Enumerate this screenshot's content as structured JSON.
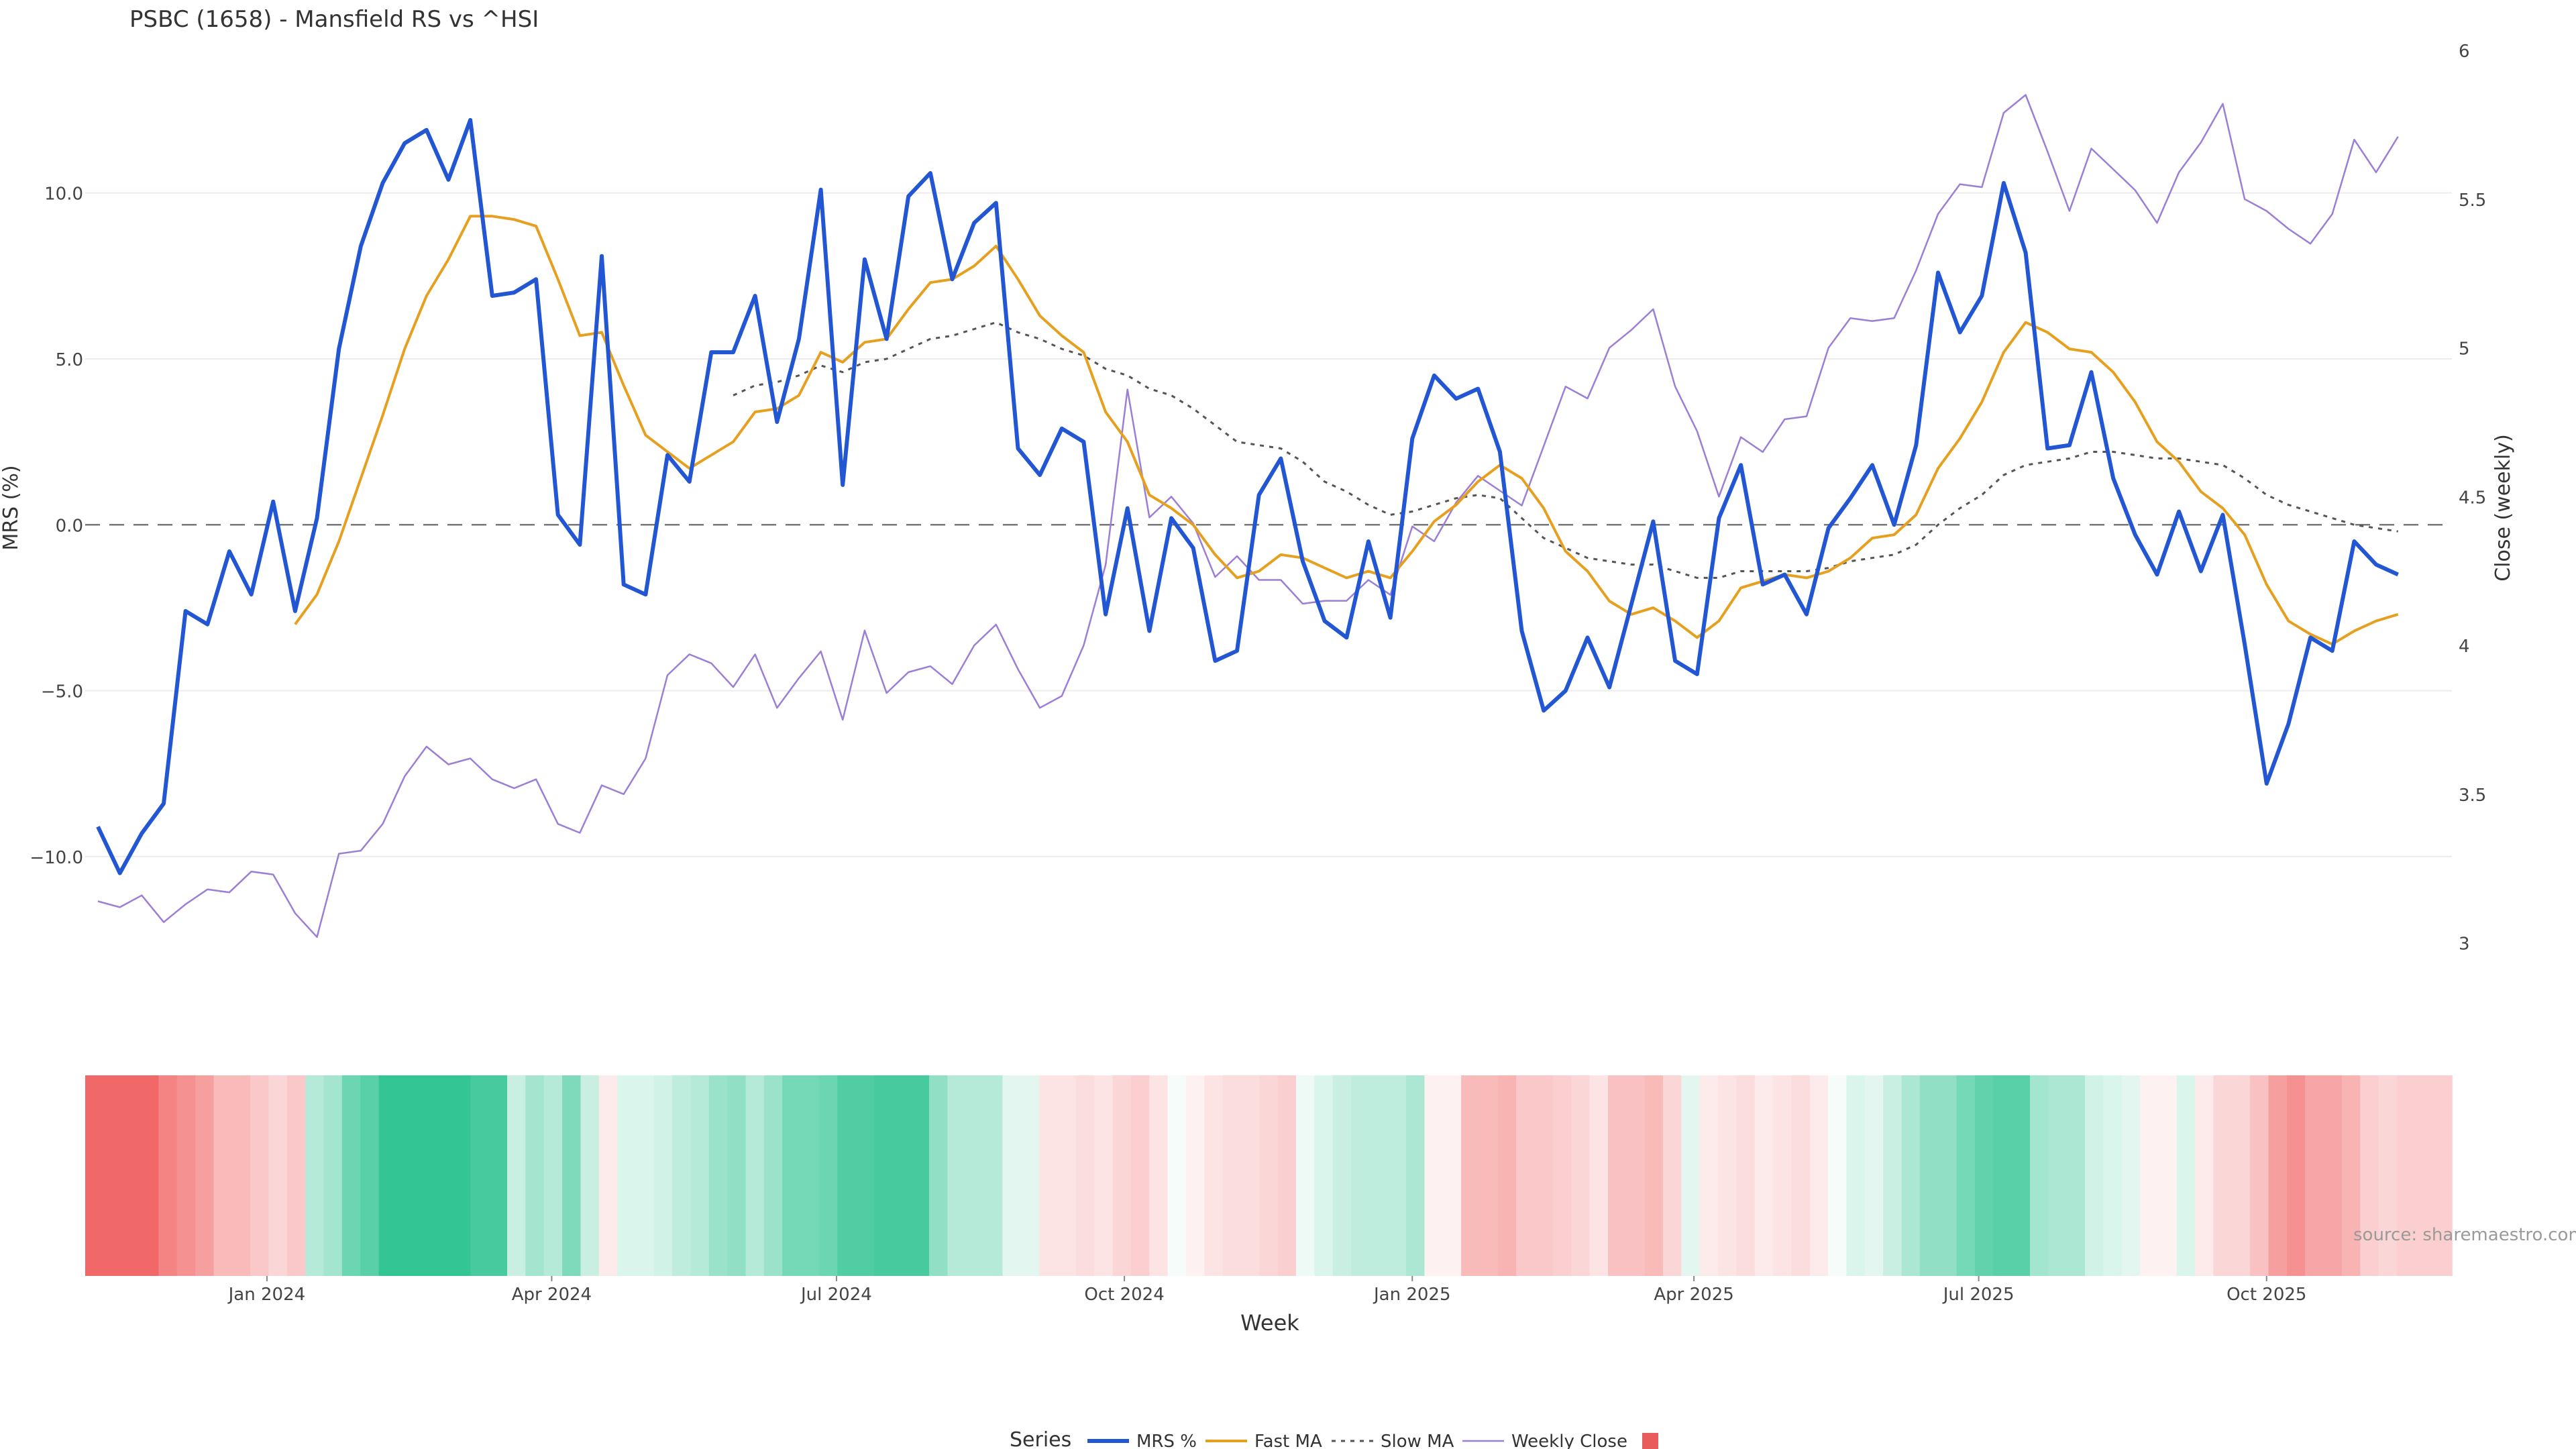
{
  "chart_data": {
    "type": "line",
    "title": "PSBC (1658) - Mansfield RS vs ^HSI",
    "xlabel": "Week",
    "ylabel_left": "MRS (%)",
    "ylabel_right": "Close (weekly)",
    "watermark": "source: sharemaestro.com",
    "legend_title": "Series",
    "legend_position": "bottom-center",
    "x_start": "2023-11-08",
    "week_count": 108,
    "x_ticks": [
      {
        "label": "Jan 2024",
        "date": "2024-01-01"
      },
      {
        "label": "Apr 2024",
        "date": "2024-04-01"
      },
      {
        "label": "Jul 2024",
        "date": "2024-07-01"
      },
      {
        "label": "Oct 2024",
        "date": "2024-10-01"
      },
      {
        "label": "Jan 2025",
        "date": "2025-01-01"
      },
      {
        "label": "Apr 2025",
        "date": "2025-04-01"
      },
      {
        "label": "Jul 2025",
        "date": "2025-07-01"
      },
      {
        "label": "Oct 2025",
        "date": "2025-10-01"
      }
    ],
    "y_left": {
      "ticks": [
        "10.0",
        "5.0",
        "0.0",
        "−5.0",
        "−10.0"
      ],
      "values": [
        10,
        5,
        0,
        -5,
        -10
      ],
      "range": [
        -13.5,
        14.3
      ]
    },
    "y_right": {
      "ticks": [
        "6",
        "5.5",
        "5",
        "4.5",
        "4",
        "3.5",
        "3"
      ],
      "values": [
        6,
        5.5,
        5,
        4.5,
        4,
        3.5,
        3
      ],
      "range": [
        2.9,
        6.0
      ]
    },
    "zero_line": true,
    "colors": {
      "mrs": "#2356d2",
      "fast": "#e6a020",
      "slow": "#555555",
      "close": "#9b7fd6",
      "legend_swatch": "#e85c5c"
    },
    "series": [
      {
        "key": "mrs",
        "name": "MRS %",
        "style": "solid",
        "values": [
          -9.1,
          -10.5,
          -9.3,
          -8.4,
          -2.6,
          -3.0,
          -0.8,
          -2.1,
          0.7,
          -2.6,
          0.2,
          5.3,
          8.4,
          10.3,
          11.5,
          11.9,
          10.4,
          12.2,
          6.9,
          7.0,
          7.4,
          0.3,
          -0.6,
          8.1,
          -1.8,
          -2.1,
          2.1,
          1.3,
          5.2,
          5.2,
          6.9,
          3.1,
          5.6,
          10.1,
          1.2,
          8.0,
          5.6,
          9.9,
          10.6,
          7.4,
          9.1,
          9.7,
          2.3,
          1.5,
          2.9,
          2.5,
          -2.7,
          0.5,
          -3.2,
          0.2,
          -0.7,
          -4.1,
          -3.8,
          0.9,
          2.0,
          -1.1,
          -2.9,
          -3.4,
          -0.5,
          -2.8,
          2.6,
          4.5,
          3.8,
          4.1,
          2.2,
          -3.2,
          -5.6,
          -5.0,
          -3.4,
          -4.9,
          -2.4,
          0.1,
          -4.1,
          -4.5,
          0.2,
          1.8,
          -1.8,
          -1.5,
          -2.7,
          -0.1,
          0.8,
          1.8,
          0.0,
          2.4,
          7.6,
          5.8,
          6.9,
          10.3,
          8.2,
          2.3,
          2.4,
          4.6,
          1.4,
          -0.3,
          -1.5,
          0.4,
          -1.4,
          0.3,
          -3.6,
          -7.8,
          -6.0,
          -3.4,
          -3.8,
          -0.5,
          -1.2,
          -1.5
        ]
      },
      {
        "key": "fast",
        "name": "Fast MA",
        "style": "solid",
        "values": [
          null,
          null,
          null,
          null,
          null,
          null,
          null,
          null,
          null,
          -3.0,
          -2.1,
          -0.5,
          1.4,
          3.3,
          5.3,
          6.9,
          8.0,
          9.3,
          9.3,
          9.2,
          9.0,
          7.4,
          5.7,
          5.8,
          4.2,
          2.7,
          2.2,
          1.7,
          2.1,
          2.5,
          3.4,
          3.5,
          3.9,
          5.2,
          4.9,
          5.5,
          5.6,
          6.5,
          7.3,
          7.4,
          7.8,
          8.4,
          7.4,
          6.3,
          5.7,
          5.2,
          3.4,
          2.5,
          0.9,
          0.5,
          0.0,
          -0.9,
          -1.6,
          -1.4,
          -0.9,
          -1.0,
          -1.3,
          -1.6,
          -1.4,
          -1.6,
          -0.8,
          0.1,
          0.6,
          1.3,
          1.8,
          1.4,
          0.5,
          -0.8,
          -1.4,
          -2.3,
          -2.7,
          -2.5,
          -2.9,
          -3.4,
          -2.9,
          -1.9,
          -1.7,
          -1.5,
          -1.6,
          -1.4,
          -1.0,
          -0.4,
          -0.3,
          0.3,
          1.7,
          2.6,
          3.7,
          5.2,
          6.1,
          5.8,
          5.3,
          5.2,
          4.6,
          3.7,
          2.5,
          1.9,
          1.0,
          0.5,
          -0.3,
          -1.8,
          -2.9,
          -3.3,
          -3.6,
          -3.2,
          -2.9,
          -2.7
        ]
      },
      {
        "key": "slow",
        "name": "Slow MA",
        "style": "dotted",
        "values": [
          null,
          null,
          null,
          null,
          null,
          null,
          null,
          null,
          null,
          null,
          null,
          null,
          null,
          null,
          null,
          null,
          null,
          null,
          null,
          null,
          null,
          null,
          null,
          null,
          null,
          null,
          null,
          null,
          null,
          3.9,
          4.2,
          4.3,
          4.5,
          4.8,
          4.6,
          4.9,
          5.0,
          5.3,
          5.6,
          5.7,
          5.9,
          6.1,
          5.8,
          5.6,
          5.3,
          5.1,
          4.7,
          4.5,
          4.1,
          3.9,
          3.5,
          3.0,
          2.5,
          2.4,
          2.3,
          1.9,
          1.3,
          1.0,
          0.6,
          0.3,
          0.4,
          0.6,
          0.8,
          0.9,
          0.8,
          0.2,
          -0.4,
          -0.7,
          -1.0,
          -1.1,
          -1.2,
          -1.2,
          -1.4,
          -1.6,
          -1.6,
          -1.4,
          -1.4,
          -1.4,
          -1.4,
          -1.3,
          -1.1,
          -1.0,
          -0.9,
          -0.6,
          0.0,
          0.5,
          0.9,
          1.5,
          1.8,
          1.9,
          2.0,
          2.2,
          2.2,
          2.1,
          2.0,
          2.0,
          1.9,
          1.8,
          1.4,
          0.9,
          0.6,
          0.4,
          0.2,
          0.0,
          -0.1,
          -0.2
        ]
      },
      {
        "key": "close",
        "name": "Weekly Close",
        "style": "solid",
        "axis": "right",
        "values": [
          3.14,
          3.12,
          3.16,
          3.07,
          3.13,
          3.18,
          3.17,
          3.24,
          3.23,
          3.1,
          3.02,
          3.3,
          3.31,
          3.4,
          3.56,
          3.66,
          3.6,
          3.62,
          3.55,
          3.52,
          3.55,
          3.4,
          3.37,
          3.53,
          3.5,
          3.62,
          3.9,
          3.97,
          3.94,
          3.86,
          3.97,
          3.79,
          3.89,
          3.98,
          3.75,
          4.05,
          3.84,
          3.91,
          3.93,
          3.87,
          4.0,
          4.07,
          3.92,
          3.79,
          3.83,
          4.0,
          4.27,
          4.86,
          4.43,
          4.5,
          4.41,
          4.23,
          4.3,
          4.22,
          4.22,
          4.14,
          4.15,
          4.15,
          4.22,
          4.17,
          4.4,
          4.35,
          4.48,
          4.57,
          4.52,
          4.47,
          4.67,
          4.87,
          4.83,
          5.0,
          5.06,
          5.13,
          4.87,
          4.72,
          4.5,
          4.7,
          4.65,
          4.76,
          4.77,
          5.0,
          5.1,
          5.09,
          5.1,
          5.26,
          5.45,
          5.55,
          5.54,
          5.79,
          5.85,
          5.66,
          5.46,
          5.67,
          5.6,
          5.53,
          5.42,
          5.59,
          5.69,
          5.82,
          5.5,
          5.46,
          5.4,
          5.35,
          5.45,
          5.7,
          5.59,
          5.71
        ]
      }
    ],
    "heatmap": {
      "type": "heatmap",
      "colorscale_min_color": "#f05a5a",
      "colorscale_mid_color": "#ffffff",
      "colorscale_max_color": "#22c08a",
      "range": [
        -12,
        12
      ],
      "values": [
        -11.0,
        -11.0,
        -11.0,
        -11.0,
        -9.0,
        -8.0,
        -7.0,
        -5.0,
        -5.0,
        -4.0,
        -3.0,
        -4.0,
        4.0,
        5.0,
        8.0,
        9.0,
        11.0,
        11.0,
        11.0,
        11.0,
        11.0,
        10.0,
        10.0,
        3.0,
        5.0,
        4.0,
        7.0,
        3.0,
        -1.5,
        2.0,
        2.0,
        2.5,
        3.5,
        4.0,
        5.5,
        6.0,
        4.0,
        5.5,
        7.5,
        7.5,
        8.0,
        9.5,
        9.5,
        10.0,
        10.0,
        10.0,
        6.0,
        4.0,
        4.0,
        4.0,
        1.5,
        1.5,
        -2.0,
        -2.0,
        -2.5,
        -2.0,
        -3.0,
        -3.5,
        -2.0,
        0.5,
        -1.0,
        -2.0,
        -2.5,
        -2.5,
        -3.0,
        -3.5,
        1.0,
        2.0,
        3.0,
        3.5,
        3.5,
        3.5,
        4.5,
        -1.0,
        -1.0,
        -5.0,
        -5.0,
        -5.5,
        -4.0,
        -4.0,
        -3.5,
        -3.0,
        -2.0,
        -4.5,
        -4.5,
        -5.0,
        -3.0,
        1.5,
        -1.5,
        -2.0,
        -2.5,
        -1.5,
        -2.0,
        -2.5,
        -1.5,
        0.5,
        2.0,
        1.5,
        3.0,
        4.5,
        6.0,
        6.0,
        7.5,
        8.5,
        9.0,
        9.0,
        5.0,
        4.5,
        4.5,
        2.5,
        2.0,
        1.5,
        -1.0,
        -1.0,
        2.0,
        -1.5,
        -3.0,
        -3.0,
        -4.5,
        -7.0,
        -8.0,
        -6.5,
        -6.5,
        -5.5,
        -3.5,
        -3.0,
        -3.5,
        -3.5,
        -3.5
      ]
    }
  }
}
